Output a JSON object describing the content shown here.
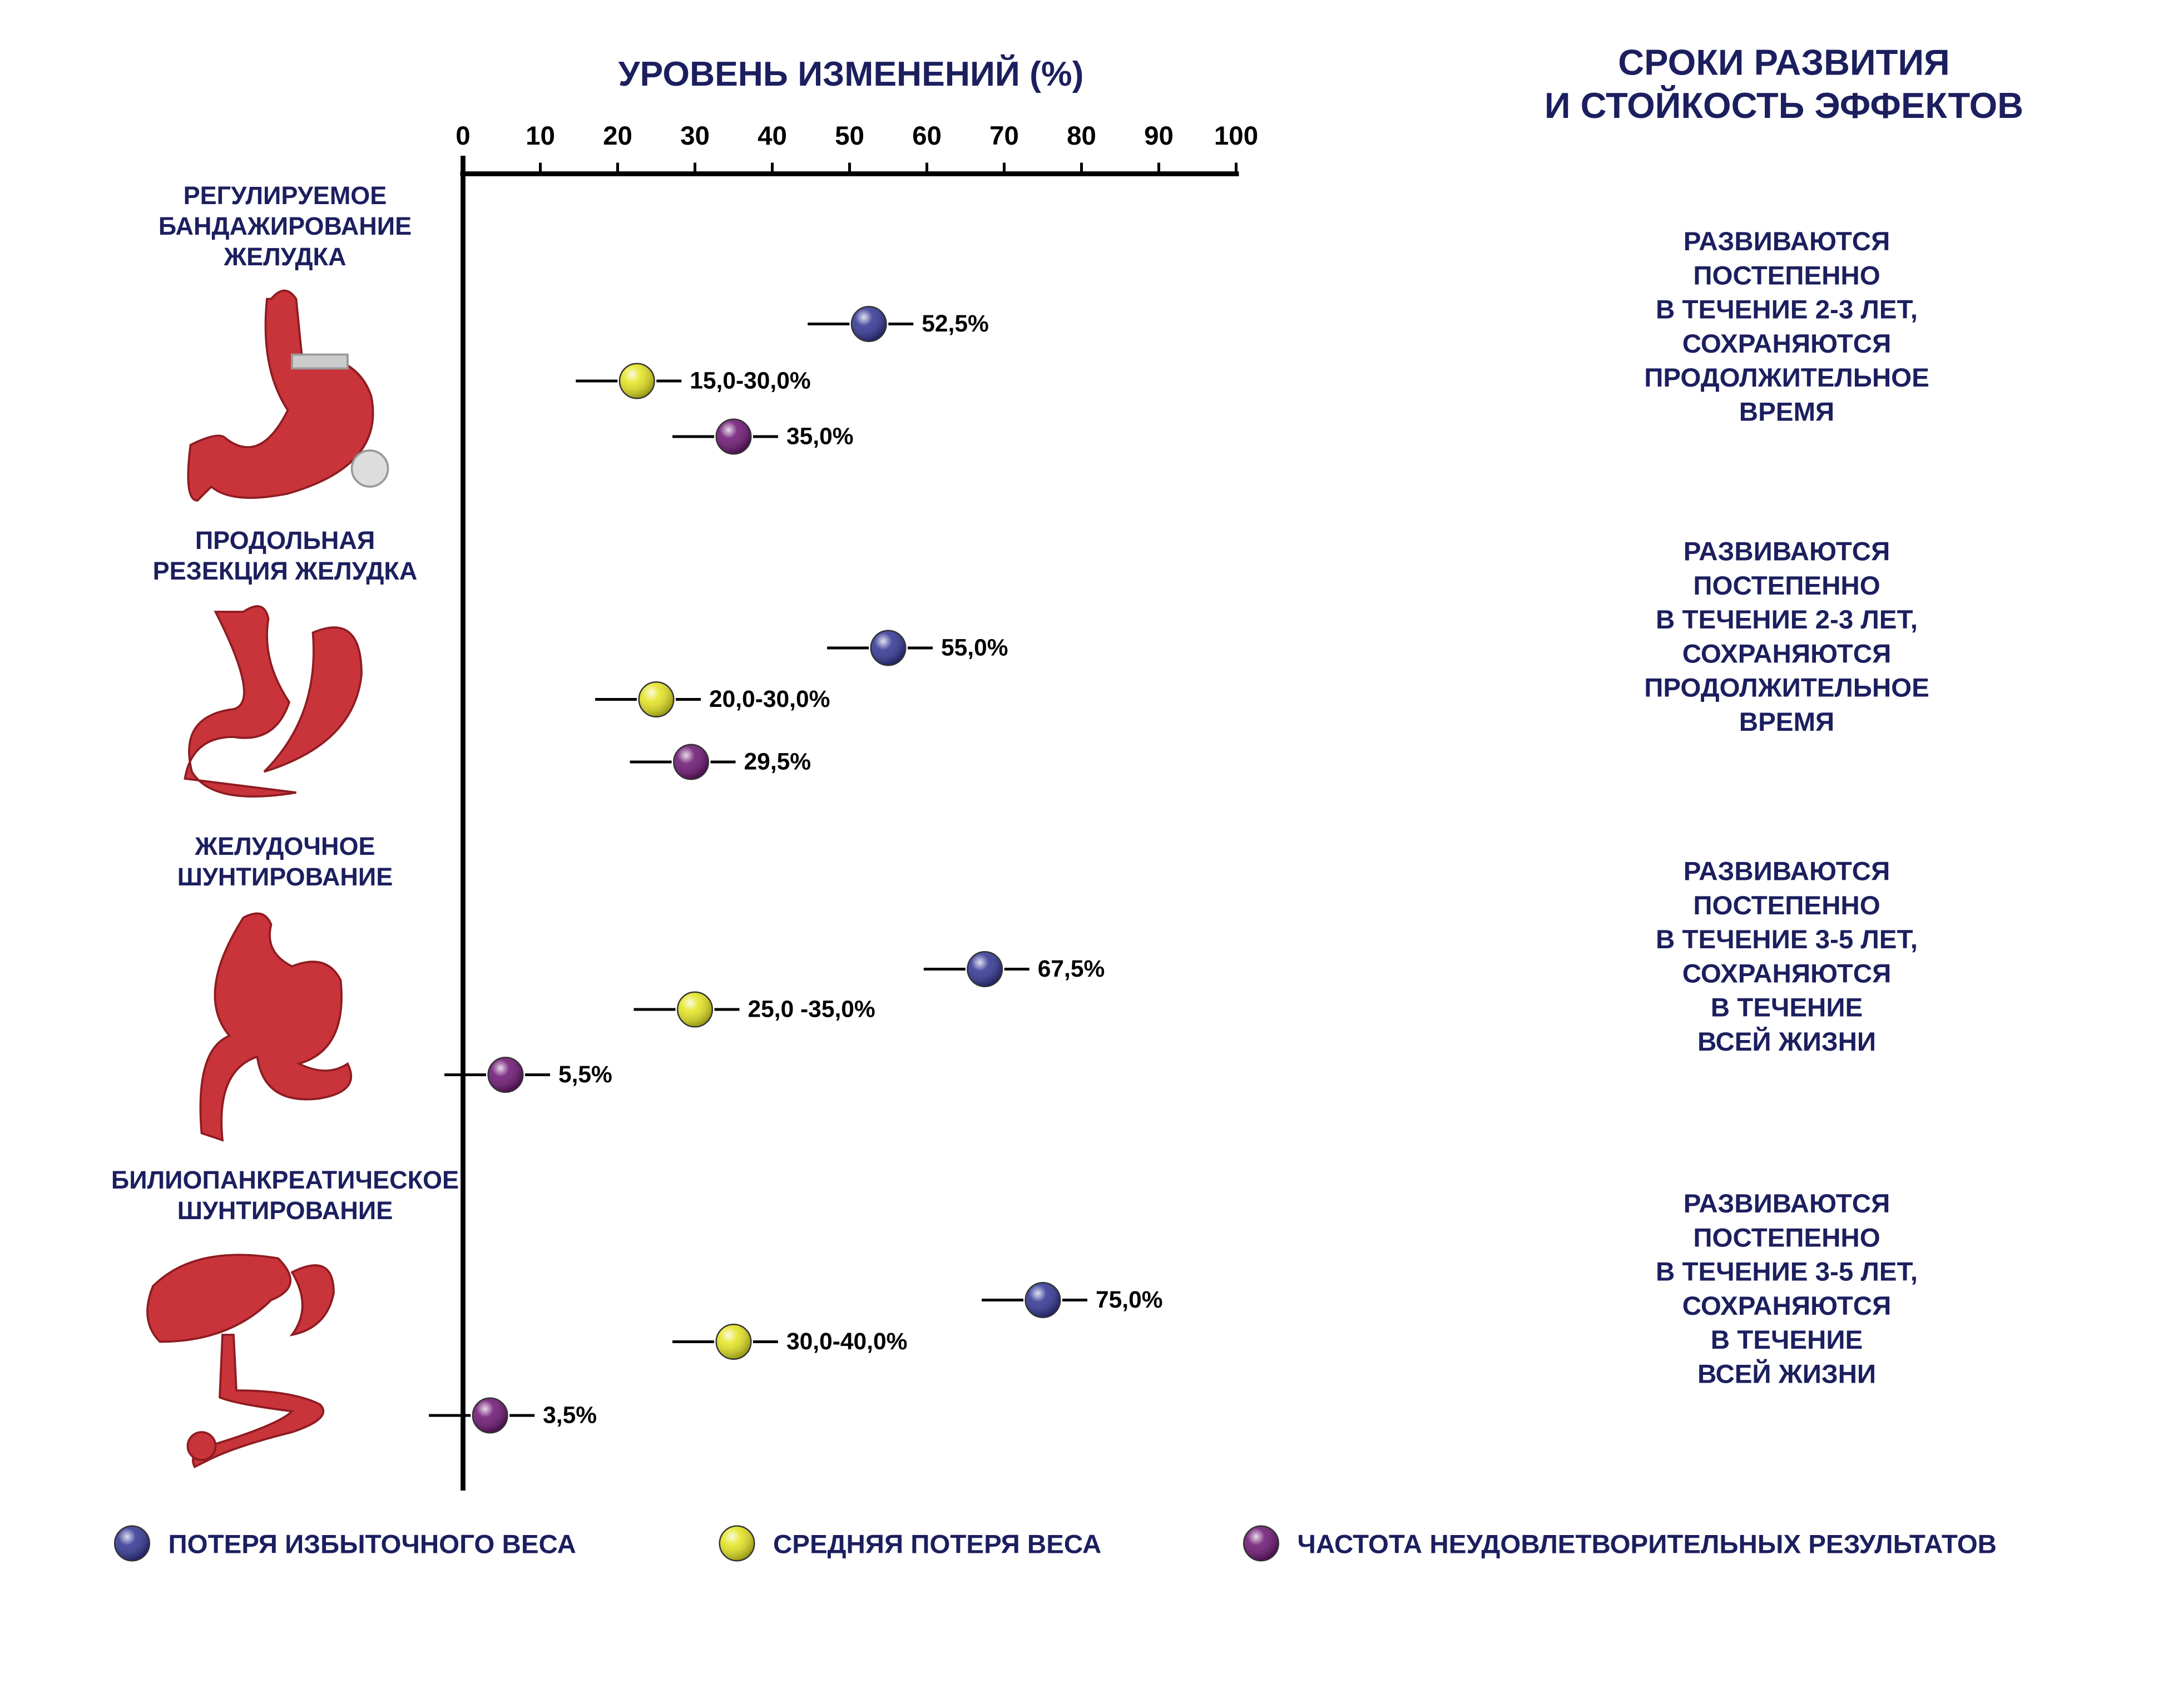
{
  "chart_data": {
    "type": "dot",
    "title": "УРОВЕНЬ ИЗМЕНЕНИЙ (%)",
    "side_title": [
      "СРОКИ РАЗВИТИЯ",
      "И СТОЙКОСТЬ ЭФФЕКТОВ"
    ],
    "xlim": [
      0,
      100
    ],
    "xticks": [
      0,
      10,
      20,
      30,
      40,
      50,
      60,
      70,
      80,
      90,
      100
    ],
    "categories": [
      [
        "РЕГУЛИРУЕМОЕ",
        "БАНДАЖИРОВАНИЕ",
        "ЖЕЛУДКА"
      ],
      [
        "ПРОДОЛЬНАЯ",
        "РЕЗЕКЦИЯ ЖЕЛУДКА"
      ],
      [
        "ЖЕЛУДОЧНОЕ",
        "ШУНТИРОВАНИЕ"
      ],
      [
        "БИЛИОПАНКРЕАТИЧЕСКОЕ",
        "ШУНТИРОВАНИЕ"
      ]
    ],
    "series": [
      {
        "name": "ПОТЕРЯ ИЗБЫТОЧНОГО ВЕСА",
        "color": "#2e3192",
        "values": [
          52.5,
          55,
          67.5,
          75
        ],
        "value_labels": [
          "52,5%",
          "55,0%",
          "67,5%",
          "75,0%"
        ]
      },
      {
        "name": "СРЕДНЯЯ ПОТЕРЯ ВЕСА",
        "color": "#e3e31c",
        "ranges": [
          [
            15,
            30
          ],
          [
            20,
            30
          ],
          [
            25,
            35
          ],
          [
            30,
            40
          ]
        ],
        "value_labels": [
          "15,0-30,0%",
          "20,0-30,0%",
          "25,0 -35,0%",
          "30,0-40,0%"
        ]
      },
      {
        "name": "ЧАСТОТА НЕУДОВЛЕТВОРИТЕЛЬНЫХ РЕЗУЛЬТАТОВ",
        "color": "#6a1070",
        "values": [
          35,
          29.5,
          5.5,
          3.5
        ],
        "value_labels": [
          "35,0%",
          "29,5%",
          "5,5%",
          "3,5%"
        ]
      }
    ],
    "timing": [
      [
        "РАЗВИВАЮТСЯ",
        "ПОСТЕПЕННО",
        "В ТЕЧЕНИЕ 2-3 ЛЕТ,",
        "СОХРАНЯЮТСЯ",
        "ПРОДОЛЖИТЕЛЬНОЕ",
        "ВРЕМЯ"
      ],
      [
        "РАЗВИВАЮТСЯ",
        "ПОСТЕПЕННО",
        "В ТЕЧЕНИЕ 2-3 ЛЕТ,",
        "СОХРАНЯЮТСЯ",
        "ПРОДОЛЖИТЕЛЬНОЕ",
        "ВРЕМЯ"
      ],
      [
        "РАЗВИВАЮТСЯ",
        "ПОСТЕПЕННО",
        "В ТЕЧЕНИЕ 3-5 ЛЕТ,",
        "СОХРАНЯЮТСЯ",
        "В ТЕЧЕНИЕ",
        "ВСЕЙ ЖИЗНИ"
      ],
      [
        "РАЗВИВАЮТСЯ",
        "ПОСТЕПЕННО",
        "В ТЕЧЕНИЕ 3-5 ЛЕТ,",
        "СОХРАНЯЮТСЯ",
        "В ТЕЧЕНИЕ",
        "ВСЕЙ ЖИЗНИ"
      ]
    ]
  }
}
